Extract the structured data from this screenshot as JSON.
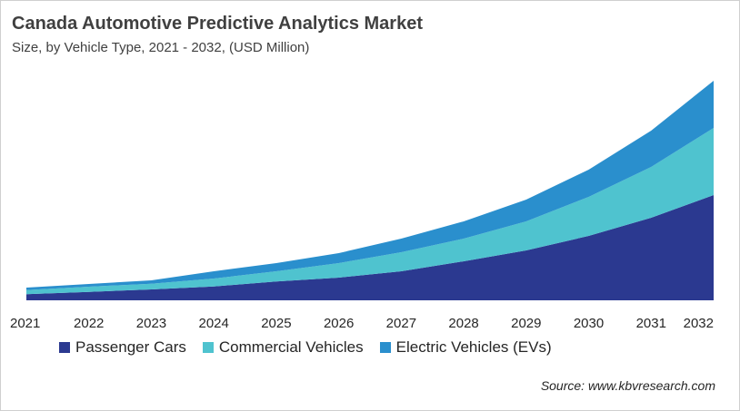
{
  "title": "Canada Automotive Predictive Analytics Market",
  "subtitle": "Size, by Vehicle Type, 2021 - 2032, (USD Million)",
  "source": "Source: www.kbvresearch.com",
  "chart_data": {
    "type": "area",
    "stacked": true,
    "categories": [
      "2021",
      "2022",
      "2023",
      "2024",
      "2025",
      "2026",
      "2027",
      "2028",
      "2029",
      "2030",
      "2031",
      "2032"
    ],
    "series": [
      {
        "name": "Passenger Cars",
        "color": "#2b3990",
        "values": [
          6.7,
          9.3,
          12,
          15.3,
          20.7,
          25,
          32,
          43,
          55,
          71,
          91,
          116
        ]
      },
      {
        "name": "Commercial Vehicles",
        "color": "#4fc3cf",
        "values": [
          4.6,
          5.7,
          6.3,
          8.7,
          11.3,
          16,
          21,
          25,
          32,
          43,
          56,
          74
        ]
      },
      {
        "name": "Electric Vehicles (EVs)",
        "color": "#2a8fcd",
        "values": [
          2.7,
          3,
          3.7,
          8,
          9,
          11,
          15,
          19,
          24,
          30,
          40,
          52
        ]
      }
    ],
    "ylim": [
      0,
      250
    ],
    "grid": false,
    "y_axis_visible": false,
    "legend_position": "bottom"
  }
}
